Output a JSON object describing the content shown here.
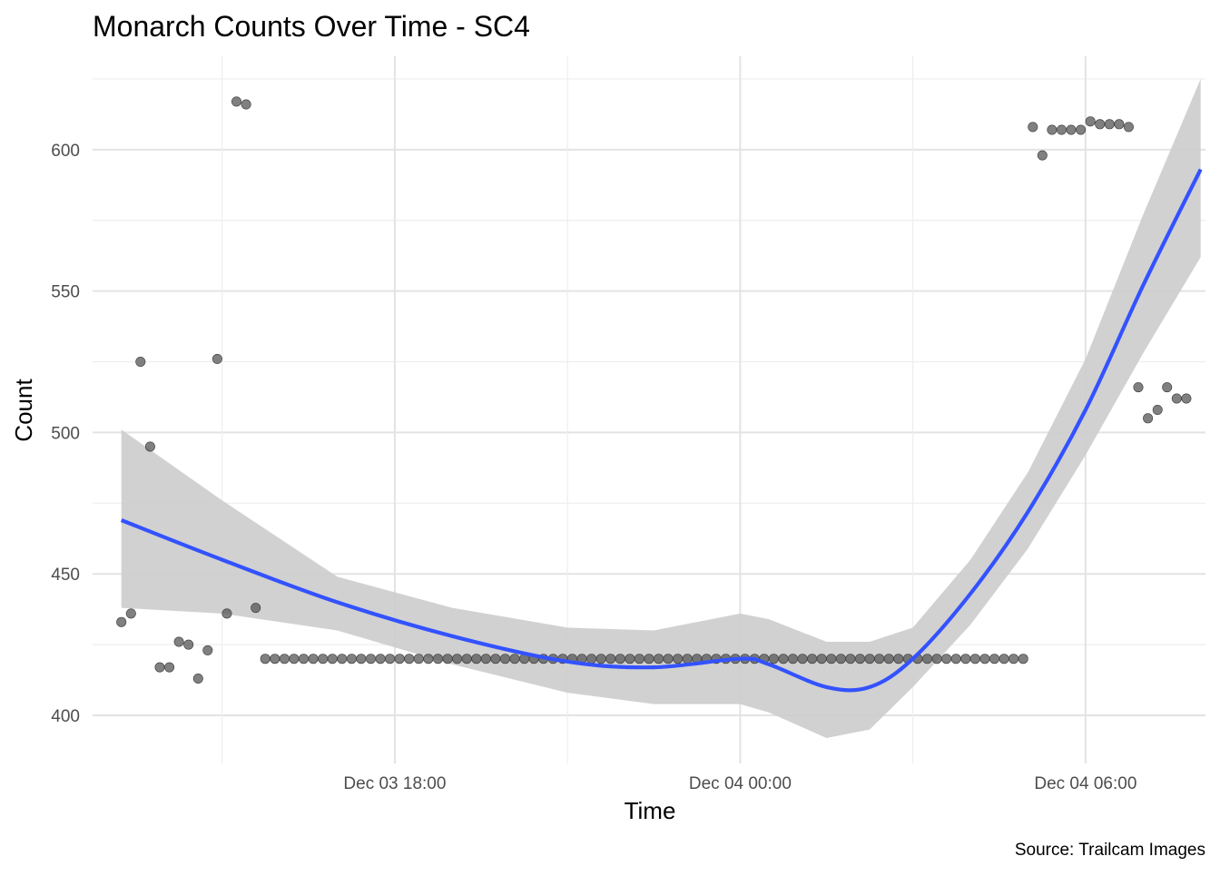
{
  "chart_data": {
    "type": "scatter",
    "title": "Monarch Counts Over Time - SC4",
    "xlabel": "Time",
    "ylabel": "Count",
    "caption": "Source: Trailcam Images",
    "x_ticks": [
      "Dec 03 18:00",
      "Dec 04 00:00",
      "Dec 04 06:00"
    ],
    "y_ticks": [
      "400",
      "450",
      "500",
      "550",
      "600"
    ],
    "y_tick_values": [
      400,
      450,
      500,
      550,
      600
    ],
    "xlim": [
      "Dec 03 12:45",
      "Dec 04 08:05"
    ],
    "ylim": [
      383,
      633
    ],
    "grid": true,
    "colors": {
      "points": "#555555",
      "smooth_line": "#3352ff",
      "confidence_band": "#cccccc",
      "grid": "#e3e3e3",
      "tick_text": "#4d4d4d"
    },
    "points": {
      "start": "Dec 03 13:15",
      "interval_minutes": 10,
      "y": [
        433,
        436,
        525,
        495,
        417,
        417,
        426,
        425,
        413,
        423,
        526,
        436,
        617,
        616,
        438,
        420,
        420,
        420,
        420,
        420,
        420,
        420,
        420,
        420,
        420,
        420,
        420,
        420,
        420,
        420,
        420,
        420,
        420,
        420,
        420,
        420,
        420,
        420,
        420,
        420,
        420,
        420,
        420,
        420,
        420,
        420,
        420,
        420,
        420,
        420,
        420,
        420,
        420,
        420,
        420,
        420,
        420,
        420,
        420,
        420,
        420,
        420,
        420,
        420,
        420,
        420,
        420,
        420,
        420,
        420,
        420,
        420,
        420,
        420,
        420,
        420,
        420,
        420,
        420,
        420,
        420,
        420,
        420,
        420,
        420,
        420,
        420,
        420,
        420,
        420,
        420,
        420,
        420,
        420,
        420,
        608,
        598,
        607,
        607,
        607,
        607,
        610,
        609,
        609,
        609,
        608,
        516,
        505,
        508,
        516,
        512,
        512
      ]
    },
    "smooth": {
      "name": "loess fit",
      "x": [
        "Dec 03 13:15",
        "Dec 03 15:00",
        "Dec 03 17:00",
        "Dec 03 19:00",
        "Dec 03 21:00",
        "Dec 03 22:30",
        "Dec 04 00:00",
        "Dec 04 00:30",
        "Dec 04 01:30",
        "Dec 04 02:15",
        "Dec 04 03:00",
        "Dec 04 04:00",
        "Dec 04 05:00",
        "Dec 04 06:00",
        "Dec 04 07:00",
        "Dec 04 08:00"
      ],
      "y": [
        469,
        455,
        440,
        428,
        419,
        417,
        420,
        418,
        410,
        410,
        420,
        443,
        472,
        508,
        552,
        593
      ],
      "lower": [
        438,
        436,
        430,
        418,
        408,
        404,
        404,
        401,
        392,
        395,
        410,
        432,
        459,
        492,
        528,
        562
      ],
      "upper": [
        501,
        476,
        449,
        438,
        431,
        430,
        436,
        434,
        426,
        426,
        431,
        455,
        486,
        526,
        577,
        625
      ]
    }
  }
}
